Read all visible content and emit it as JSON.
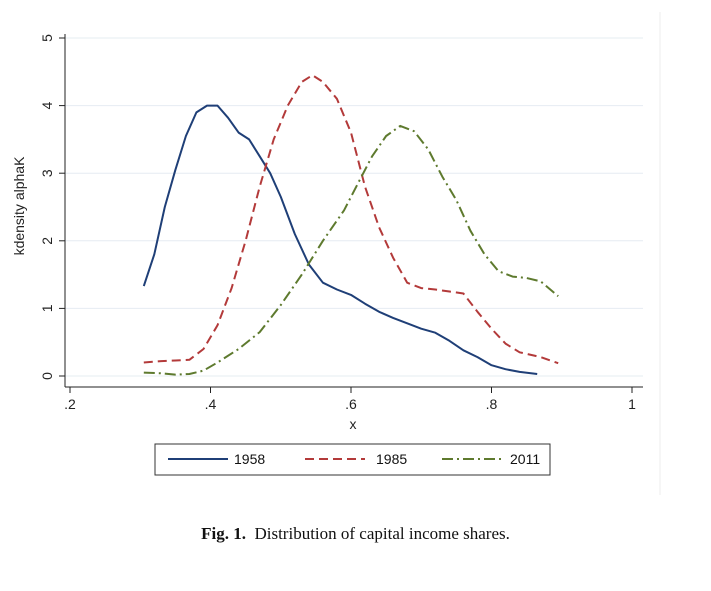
{
  "caption": {
    "label": "Fig. 1.",
    "text": "Distribution of capital income shares."
  },
  "chart_data": {
    "type": "line",
    "xlabel": "x",
    "ylabel": "kdensity alphaK",
    "xlim": [
      0.2,
      1.0
    ],
    "ylim": [
      0,
      5
    ],
    "xticks": [
      0.2,
      0.4,
      0.6,
      0.8,
      1.0
    ],
    "xtick_labels": [
      ".2",
      ".4",
      ".6",
      ".8",
      "1"
    ],
    "yticks": [
      0,
      1,
      2,
      3,
      4,
      5
    ],
    "ytick_labels": [
      "0",
      "1",
      "2",
      "3",
      "4",
      "5"
    ],
    "grid": true,
    "legend_position": "bottom",
    "series": [
      {
        "name": "1958",
        "color": "#1f3f77",
        "dash": "solid",
        "x": [
          0.305,
          0.32,
          0.335,
          0.35,
          0.365,
          0.38,
          0.395,
          0.41,
          0.425,
          0.44,
          0.455,
          0.47,
          0.485,
          0.5,
          0.52,
          0.54,
          0.56,
          0.58,
          0.6,
          0.62,
          0.64,
          0.66,
          0.68,
          0.7,
          0.72,
          0.74,
          0.76,
          0.78,
          0.8,
          0.82,
          0.84,
          0.865
        ],
        "y": [
          1.33,
          1.8,
          2.5,
          3.05,
          3.55,
          3.9,
          4.0,
          4.0,
          3.82,
          3.6,
          3.5,
          3.25,
          3.0,
          2.65,
          2.1,
          1.65,
          1.38,
          1.28,
          1.2,
          1.07,
          0.95,
          0.86,
          0.78,
          0.7,
          0.64,
          0.52,
          0.38,
          0.28,
          0.16,
          0.1,
          0.06,
          0.03
        ]
      },
      {
        "name": "1985",
        "color": "#b33a3a",
        "dash": "dashed",
        "x": [
          0.305,
          0.33,
          0.35,
          0.37,
          0.39,
          0.41,
          0.43,
          0.45,
          0.47,
          0.49,
          0.51,
          0.53,
          0.545,
          0.56,
          0.58,
          0.6,
          0.62,
          0.64,
          0.66,
          0.68,
          0.7,
          0.72,
          0.74,
          0.76,
          0.78,
          0.8,
          0.82,
          0.84,
          0.87,
          0.895
        ],
        "y": [
          0.2,
          0.22,
          0.23,
          0.24,
          0.4,
          0.75,
          1.3,
          2.0,
          2.8,
          3.5,
          4.0,
          4.35,
          4.45,
          4.35,
          4.1,
          3.6,
          2.8,
          2.2,
          1.75,
          1.38,
          1.3,
          1.28,
          1.25,
          1.22,
          0.95,
          0.7,
          0.48,
          0.35,
          0.28,
          0.19
        ]
      },
      {
        "name": "2011",
        "color": "#5e7a2e",
        "dash": "dashdot",
        "x": [
          0.305,
          0.33,
          0.35,
          0.37,
          0.39,
          0.41,
          0.44,
          0.47,
          0.5,
          0.53,
          0.56,
          0.59,
          0.61,
          0.63,
          0.65,
          0.67,
          0.69,
          0.71,
          0.73,
          0.75,
          0.77,
          0.79,
          0.81,
          0.83,
          0.85,
          0.87,
          0.895
        ],
        "y": [
          0.05,
          0.04,
          0.02,
          0.03,
          0.08,
          0.2,
          0.4,
          0.65,
          1.05,
          1.5,
          2.0,
          2.45,
          2.85,
          3.25,
          3.55,
          3.7,
          3.62,
          3.35,
          2.95,
          2.6,
          2.15,
          1.8,
          1.55,
          1.47,
          1.45,
          1.4,
          1.18
        ]
      }
    ]
  }
}
